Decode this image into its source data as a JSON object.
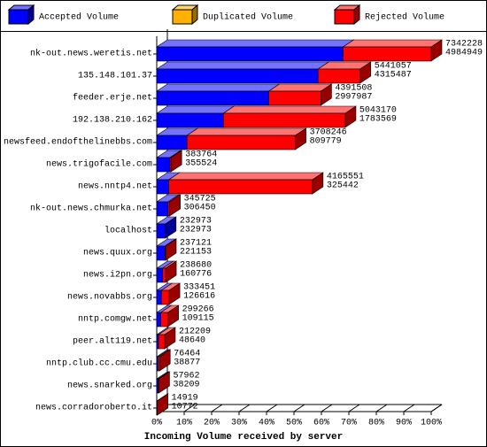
{
  "chart_data": {
    "type": "bar3d_stacked_horizontal",
    "xlabel": "Incoming Volume received by server",
    "categories": [
      "nk-out.news.weretis.net",
      "135.148.101.37",
      "feeder.erje.net",
      "192.138.210.162",
      "newsfeed.endofthelinebbs.com",
      "news.trigofacile.com",
      "news.nntp4.net",
      "nk-out.news.chmurka.net",
      "localhost",
      "news.quux.org",
      "news.i2pn.org",
      "news.novabbs.org",
      "nntp.comgw.net",
      "peer.alt119.net",
      "nntp.club.cc.cmu.edu",
      "news.snarked.org",
      "news.corradoroberto.it"
    ],
    "totals": [
      7342228,
      5441057,
      4391508,
      5043170,
      3708246,
      383764,
      4165551,
      345725,
      232973,
      237121,
      238680,
      333451,
      299266,
      212209,
      76464,
      57962,
      14919
    ],
    "series": [
      {
        "name": "Accepted Volume",
        "color": "#0000ff",
        "values": [
          4984949,
          4315487,
          2997987,
          1783569,
          809779,
          355524,
          325442,
          306450,
          232973,
          221153,
          160776,
          126616,
          109115,
          48640,
          38877,
          38209,
          10772
        ]
      },
      {
        "name": "Duplicated Volume",
        "color": "#ffb000",
        "values": [
          0,
          0,
          0,
          0,
          0,
          0,
          0,
          0,
          0,
          0,
          0,
          0,
          0,
          0,
          0,
          0,
          0
        ]
      },
      {
        "name": "Rejected Volume",
        "color": "#ff0000",
        "values": [
          2357279,
          1125570,
          1393521,
          3259601,
          2898467,
          28240,
          3840109,
          39275,
          0,
          15968,
          77904,
          206835,
          190151,
          163569,
          37587,
          19753,
          4147
        ]
      }
    ],
    "xlim": [
      0,
      7342228
    ],
    "xticks": [
      {
        "value": 0,
        "label": "0%"
      },
      {
        "value": 734222.8,
        "label": "10%"
      },
      {
        "value": 1468445.6,
        "label": "20%"
      },
      {
        "value": 2202668.4,
        "label": "30%"
      },
      {
        "value": 2936891.2,
        "label": "40%"
      },
      {
        "value": 3671114,
        "label": "50%"
      },
      {
        "value": 4405336.8,
        "label": "60%"
      },
      {
        "value": 5139559.6,
        "label": "70%"
      },
      {
        "value": 5873782.4,
        "label": "80%"
      },
      {
        "value": 6608005.2,
        "label": "90%"
      },
      {
        "value": 7342228,
        "label": "100%"
      }
    ]
  }
}
